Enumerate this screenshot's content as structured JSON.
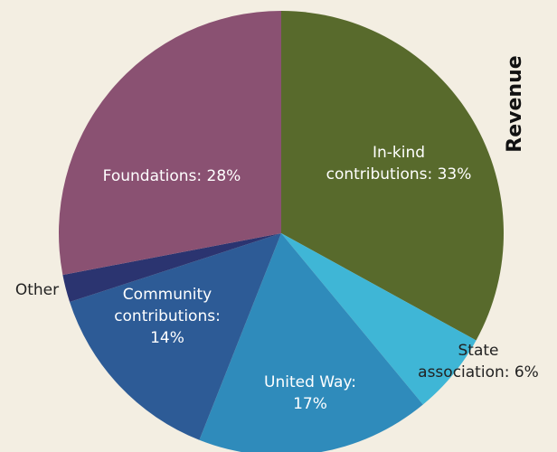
{
  "chart_data": {
    "type": "pie",
    "title": "Revenue",
    "slices": [
      {
        "label": "In-kind contributions: 33%",
        "category": "In-kind contributions",
        "value": 33,
        "color": "#586a2c"
      },
      {
        "label": "State association: 6%",
        "category": "State association",
        "value": 6,
        "color": "#3fb6d6"
      },
      {
        "label": "United Way: 17%",
        "category": "United Way",
        "value": 17,
        "color": "#2f8bbb"
      },
      {
        "label": "Community contributions: 14%",
        "category": "Community contributions",
        "value": 14,
        "color": "#2d5b96"
      },
      {
        "label": "Other",
        "category": "Other",
        "value": 2,
        "color": "#2b3470"
      },
      {
        "label": "Foundations: 28%",
        "category": "Foundations",
        "value": 28,
        "color": "#8a5172"
      }
    ]
  }
}
